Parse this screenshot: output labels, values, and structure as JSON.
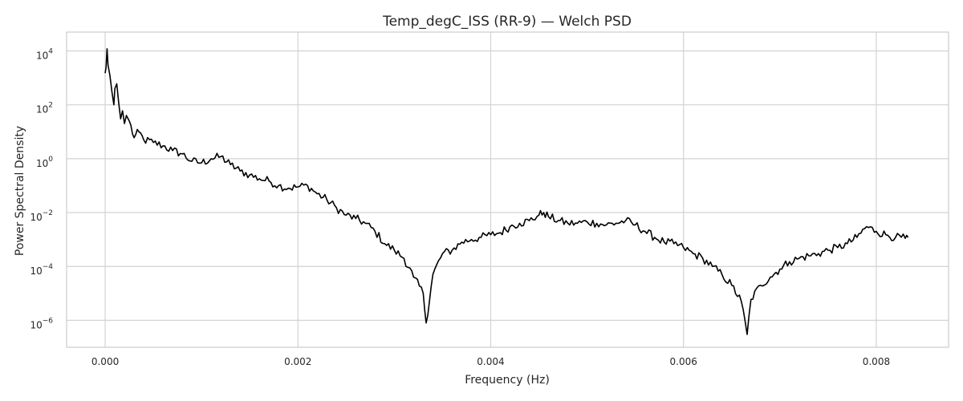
{
  "chart_data": {
    "type": "line",
    "title": "Temp_degC_ISS (RR-9) — Welch PSD",
    "xlabel": "Frequency (Hz)",
    "ylabel": "Power Spectral Density",
    "x_scale": "linear",
    "y_scale": "log",
    "xlim": [
      -0.0004,
      0.00875
    ],
    "ylim": [
      1e-07,
      50000
    ],
    "x_ticks": [
      0.0,
      0.002,
      0.004,
      0.006,
      0.008
    ],
    "x_tick_labels": [
      "0.000",
      "0.002",
      "0.004",
      "0.006",
      "0.008"
    ],
    "y_ticks": [
      1e-06,
      0.0001,
      0.01,
      1,
      100,
      10000
    ],
    "y_tick_labels": [
      {
        "base": "10",
        "exp": "−6"
      },
      {
        "base": "10",
        "exp": "−4"
      },
      {
        "base": "10",
        "exp": "−2"
      },
      {
        "base": "10",
        "exp": "0"
      },
      {
        "base": "10",
        "exp": "2"
      },
      {
        "base": "10",
        "exp": "4"
      }
    ],
    "grid": true,
    "line_color": "#000000",
    "series": [
      {
        "x": [
          0.0,
          1e-05,
          2e-05,
          3e-05,
          5e-05,
          7e-05,
          9e-05,
          0.0001,
          0.00012,
          0.00014,
          0.00016,
          0.00018,
          0.0002,
          0.00022,
          0.00025,
          0.0003,
          0.00035,
          0.0004,
          0.0005,
          0.0006,
          0.0007,
          0.0008,
          0.0009,
          0.001,
          0.0011,
          0.0012,
          0.0013,
          0.0014,
          0.0015,
          0.0016,
          0.0017,
          0.0018,
          0.0019,
          0.002,
          0.0021,
          0.0022,
          0.0023,
          0.0024,
          0.0025,
          0.0026,
          0.0027,
          0.0028,
          0.0029,
          0.003,
          0.0031,
          0.0032,
          0.0033,
          0.00333,
          0.0034,
          0.0035,
          0.0036,
          0.0037,
          0.0038,
          0.0039,
          0.004,
          0.0041,
          0.0042,
          0.0043,
          0.0044,
          0.0045,
          0.00455,
          0.0046,
          0.0047,
          0.0048,
          0.0049,
          0.005,
          0.0051,
          0.0052,
          0.0053,
          0.0054,
          0.0055,
          0.0056,
          0.0057,
          0.0058,
          0.0059,
          0.006,
          0.0061,
          0.0062,
          0.0063,
          0.0064,
          0.0065,
          0.0066,
          0.00666,
          0.0067,
          0.0068,
          0.0069,
          0.007,
          0.0071,
          0.0072,
          0.0073,
          0.0074,
          0.0075,
          0.0076,
          0.0077,
          0.0078,
          0.0079,
          0.008,
          0.0081,
          0.0082,
          0.0083,
          0.00833
        ],
        "y": [
          1500,
          2500,
          12000,
          3000,
          1200,
          300,
          100,
          400,
          600,
          120,
          30,
          60,
          20,
          40,
          25,
          6,
          10,
          5,
          4,
          3,
          2,
          1.5,
          0.8,
          0.7,
          1.0,
          1.2,
          0.6,
          0.35,
          0.25,
          0.18,
          0.15,
          0.1,
          0.08,
          0.09,
          0.1,
          0.05,
          0.03,
          0.015,
          0.008,
          0.006,
          0.004,
          0.002,
          0.0007,
          0.0004,
          0.0002,
          4e-05,
          1e-05,
          8e-07,
          5e-05,
          0.0003,
          0.0004,
          0.0008,
          0.001,
          0.0012,
          0.0015,
          0.0018,
          0.003,
          0.004,
          0.005,
          0.008,
          0.01,
          0.007,
          0.005,
          0.004,
          0.004,
          0.0045,
          0.004,
          0.0035,
          0.004,
          0.005,
          0.0035,
          0.002,
          0.0012,
          0.0008,
          0.0007,
          0.0005,
          0.0003,
          0.0002,
          0.0001,
          5e-05,
          2e-05,
          5e-06,
          3e-07,
          6e-06,
          2e-05,
          4e-05,
          8e-05,
          0.00015,
          0.0002,
          0.00025,
          0.0003,
          0.0004,
          0.0005,
          0.0007,
          0.0012,
          0.003,
          0.002,
          0.0015,
          0.0012,
          0.0011,
          0.0012
        ]
      }
    ]
  }
}
